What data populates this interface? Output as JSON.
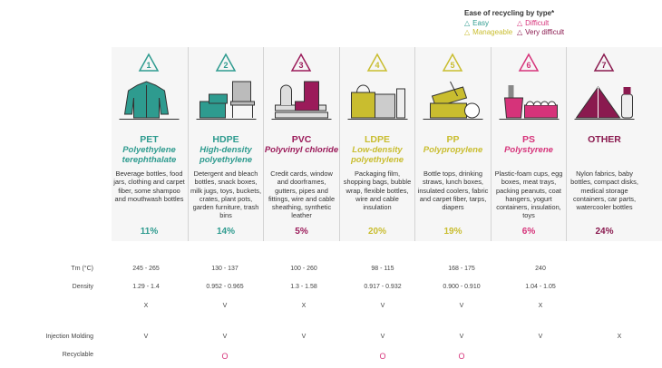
{
  "legend": {
    "title": "Ease of recycling by type*",
    "items": [
      {
        "label": "Easy",
        "color": "#2e9b8f"
      },
      {
        "label": "Difficult",
        "color": "#d6337a"
      },
      {
        "label": "Manageable",
        "color": "#c9bd2f"
      },
      {
        "label": "Very difficult",
        "color": "#8a1a4f"
      }
    ]
  },
  "plastics": [
    {
      "num": "1",
      "abbr": "PET",
      "full": "Polyethylene terephthalate",
      "uses": "Beverage bottles, food jars, clothing and carpet fiber, some shampoo and mouthwash bottles",
      "pct": "11%",
      "color": "#2e9b8f",
      "icon": "jacket-icon"
    },
    {
      "num": "2",
      "abbr": "HDPE",
      "full": "High-density polyethylene",
      "uses": "Detergent and bleach bottles, snack boxes, milk jugs, toys, buckets, crates, plant pots, garden furniture, trash bins",
      "pct": "14%",
      "color": "#2e9b8f",
      "icon": "crates-chair-icon"
    },
    {
      "num": "3",
      "abbr": "PVC",
      "full": "Polyvinyl chloride",
      "uses": "Credit cards, window and doorframes, gutters, pipes and fittings, wire and cable sheathing, synthetic leather",
      "pct": "5%",
      "color": "#9b1b5a",
      "icon": "pipes-boot-icon"
    },
    {
      "num": "4",
      "abbr": "LDPE",
      "full": "Low-density polyethylene",
      "uses": "Packaging film, shopping bags, bubble wrap, flexible bottles, wire and cable insulation",
      "pct": "20%",
      "color": "#c9bd2f",
      "icon": "bags-icon"
    },
    {
      "num": "5",
      "abbr": "PP",
      "full": "Polypropylene",
      "uses": "Bottle tops, drinking straws, lunch boxes, insulated coolers, fabric and carpet fiber, tarps, diapers",
      "pct": "19%",
      "color": "#c9bd2f",
      "icon": "lunchbox-icon"
    },
    {
      "num": "6",
      "abbr": "PS",
      "full": "Polystyrene",
      "uses": "Plastic-foam cups, egg boxes, meat trays, packing peanuts, coat hangers, yogurt containers, insulation, toys",
      "pct": "6%",
      "color": "#d6337a",
      "icon": "cups-eggbox-icon"
    },
    {
      "num": "7",
      "abbr": "OTHER",
      "full": "",
      "uses": "Nylon fabrics, baby bottles, compact disks, medical storage containers, car parts, watercooler bottles",
      "pct": "24%",
      "color": "#8a1a4f",
      "icon": "tent-bottle-icon"
    }
  ],
  "table": [
    {
      "label": "Tm (°C)",
      "values": [
        "245 - 265",
        "130 - 137",
        "100 - 260",
        "98 - 115",
        "168 - 175",
        "240",
        ""
      ]
    },
    {
      "label": "Density",
      "values": [
        "1.29 - 1.4",
        "0.952 - 0.965",
        "1.3 - 1.58",
        "0.917 - 0.932",
        "0.900 - 0.910",
        "1.04 - 1.05",
        ""
      ]
    },
    {
      "label": "",
      "values": [
        "X",
        "V",
        "X",
        "V",
        "V",
        "X",
        ""
      ]
    },
    {
      "label": "Injection Molding",
      "values": [
        "V",
        "V",
        "V",
        "V",
        "V",
        "V",
        "X"
      ]
    },
    {
      "label": "Recyclable",
      "values": [
        "",
        "O",
        "",
        "O",
        "O",
        "",
        ""
      ]
    }
  ]
}
